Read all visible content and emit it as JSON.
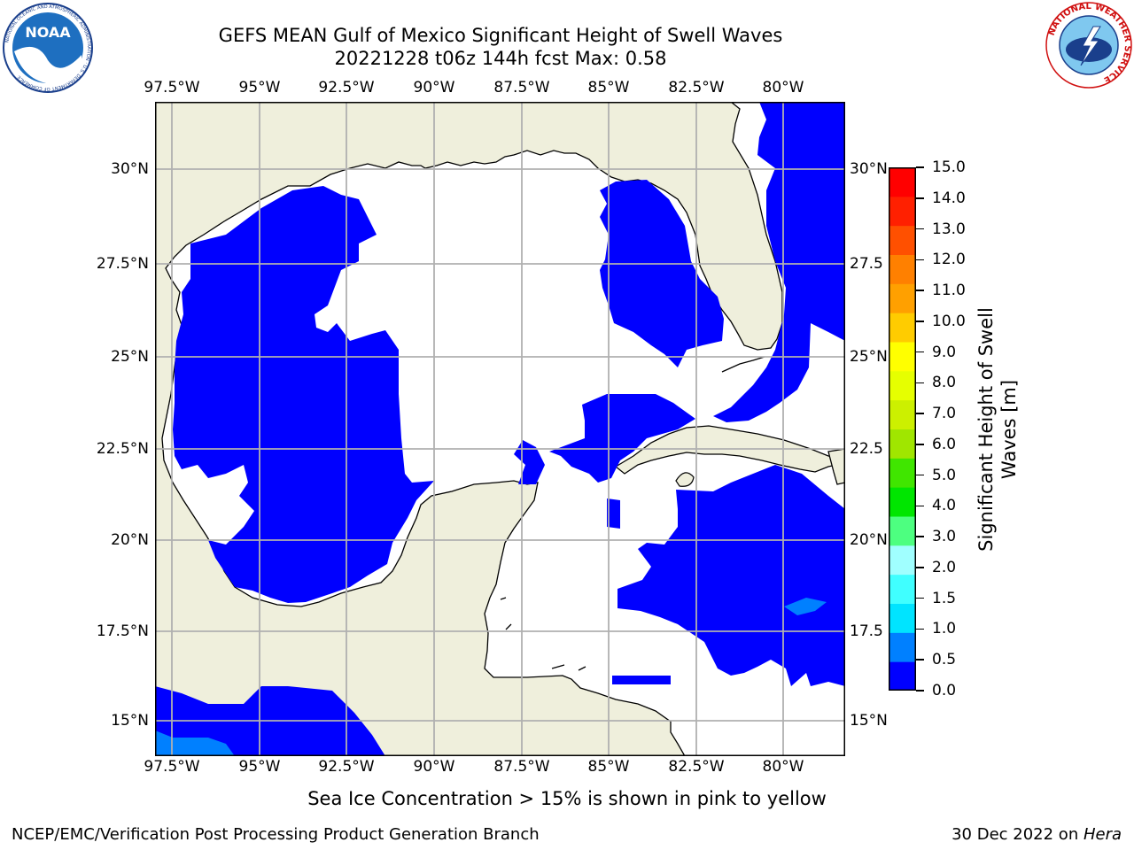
{
  "header": {
    "title": "GEFS MEAN Gulf of Mexico Significant Height of Swell Waves",
    "subtitle": "20221228 t06z 144h fcst   Max: 0.58",
    "noaa_text": "NOAA",
    "noaa_ring": "NATIONAL OCEANIC AND ATMOSPHERIC ADMINISTRATION · U.S. DEPARTMENT OF COMMERCE",
    "nws_ring": "NATIONAL WEATHER SERVICE"
  },
  "map": {
    "lon_labels": [
      "97.5°W",
      "95°W",
      "92.5°W",
      "90°W",
      "87.5°W",
      "85°W",
      "82.5°W",
      "80°W"
    ],
    "lat_labels_left": [
      "30°N",
      "27.5°N",
      "25°N",
      "22.5°N",
      "20°N",
      "17.5°N",
      "15°N"
    ],
    "lat_labels_right": [
      "30°N",
      "27.5",
      "25°N",
      "22.5",
      "20°N",
      "17.5",
      "15°N"
    ],
    "colors": {
      "land": "#efefdc",
      "swell_0": "#0000ff",
      "swell_05": "#0080ff",
      "grid": "#b0b0b0"
    }
  },
  "colorbar": {
    "label": "Significant Height of Swell Waves [m]",
    "ticks": [
      "0.0",
      "0.5",
      "1.0",
      "1.5",
      "2.0",
      "3.0",
      "4.0",
      "5.0",
      "6.0",
      "7.0",
      "8.0",
      "9.0",
      "10.0",
      "11.0",
      "12.0",
      "13.0",
      "14.0",
      "15.0"
    ],
    "colors": [
      "#0000ff",
      "#0080ff",
      "#00e4ff",
      "#40ffff",
      "#a0ffff",
      "#4dff80",
      "#00e600",
      "#40e600",
      "#a0e600",
      "#ccf000",
      "#e6ff00",
      "#ffff00",
      "#ffcc00",
      "#ffa000",
      "#ff8000",
      "#ff5000",
      "#ff2000",
      "#ff0000"
    ]
  },
  "note": "Sea Ice Concentration > 15% is shown in pink to yellow",
  "footer": {
    "left": "NCEP/EMC/Verification Post Processing Product Generation Branch",
    "right_prefix": "30 Dec 2022 on ",
    "right_host": "Hera"
  }
}
